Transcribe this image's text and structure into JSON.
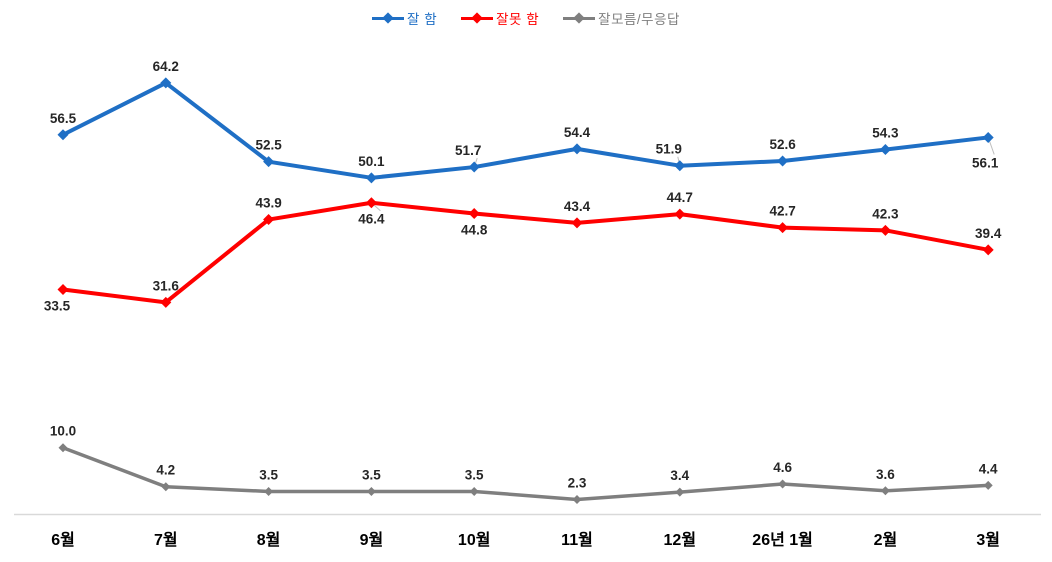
{
  "chart_data": {
    "type": "line",
    "title": "",
    "categories": [
      "6월",
      "7월",
      "8월",
      "9월",
      "10월",
      "11월",
      "12월",
      "26년 1월",
      "2월",
      "3월"
    ],
    "series": [
      {
        "name": "잘 함",
        "color": "#1F6FC5",
        "values": [
          56.5,
          64.2,
          52.5,
          50.1,
          51.7,
          54.4,
          51.9,
          52.6,
          54.3,
          56.1
        ],
        "label_positions": [
          "above",
          "above",
          "above",
          "above",
          "above",
          "above",
          "above",
          "above",
          "above",
          "below"
        ]
      },
      {
        "name": "잘못 함",
        "color": "#FF0000",
        "values": [
          33.5,
          31.6,
          43.9,
          46.4,
          44.8,
          43.4,
          44.7,
          42.7,
          42.3,
          39.4
        ],
        "label_positions": [
          "below",
          "above",
          "above",
          "below",
          "below",
          "above",
          "above",
          "above",
          "above",
          "above"
        ]
      },
      {
        "name": "잘모름/무응답",
        "color": "#7F7F7F",
        "values": [
          10.0,
          4.2,
          3.5,
          3.5,
          3.5,
          2.3,
          3.4,
          4.6,
          3.6,
          4.4
        ],
        "label_positions": [
          "above",
          "above",
          "above",
          "above",
          "above",
          "above",
          "above",
          "above",
          "above",
          "above"
        ]
      }
    ],
    "xlabel": "",
    "ylabel": "",
    "ylim": [
      0,
      75
    ],
    "grid": false,
    "legend_position": "top",
    "marker": "diamond",
    "label_decimals": 1,
    "label_color": "#262626",
    "axis_line_color": "#D9D9D9",
    "label_leaders": [
      [
        0,
        4
      ],
      [
        0,
        6
      ],
      [
        0,
        9
      ],
      [
        1,
        3
      ]
    ]
  }
}
